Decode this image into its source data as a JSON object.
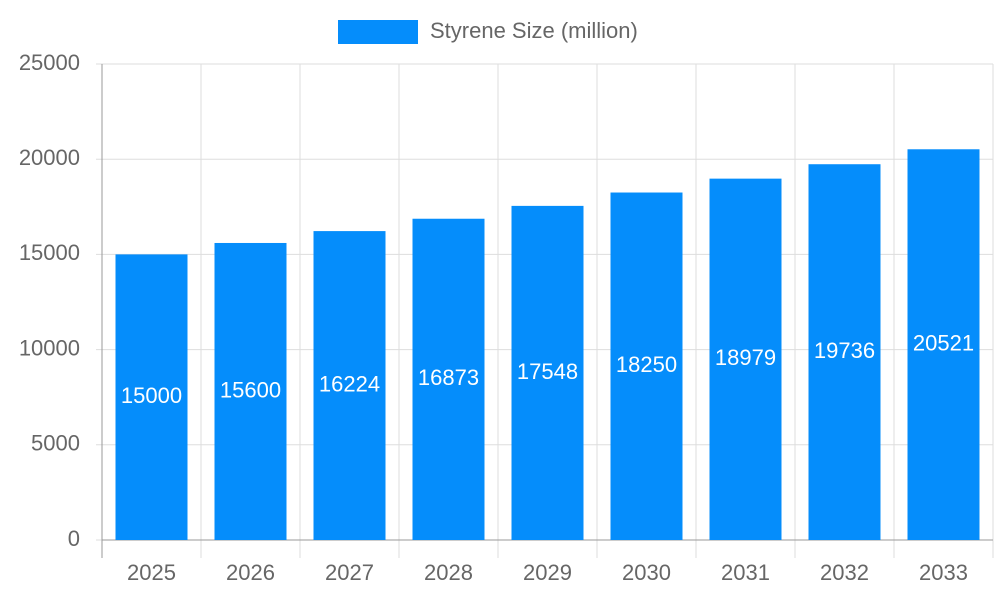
{
  "chart_data": {
    "type": "bar",
    "series": [
      {
        "name": "Styrene Size (million)",
        "color": "#058dfb",
        "values": [
          15000,
          15600,
          16224,
          16873,
          17548,
          18250,
          18979,
          19736,
          20521
        ]
      }
    ],
    "categories": [
      "2025",
      "2026",
      "2027",
      "2028",
      "2029",
      "2030",
      "2031",
      "2032",
      "2033"
    ],
    "ylim": [
      0,
      25000
    ],
    "yticks": [
      0,
      5000,
      10000,
      15000,
      20000,
      25000
    ],
    "grid": true,
    "legend": "top"
  }
}
